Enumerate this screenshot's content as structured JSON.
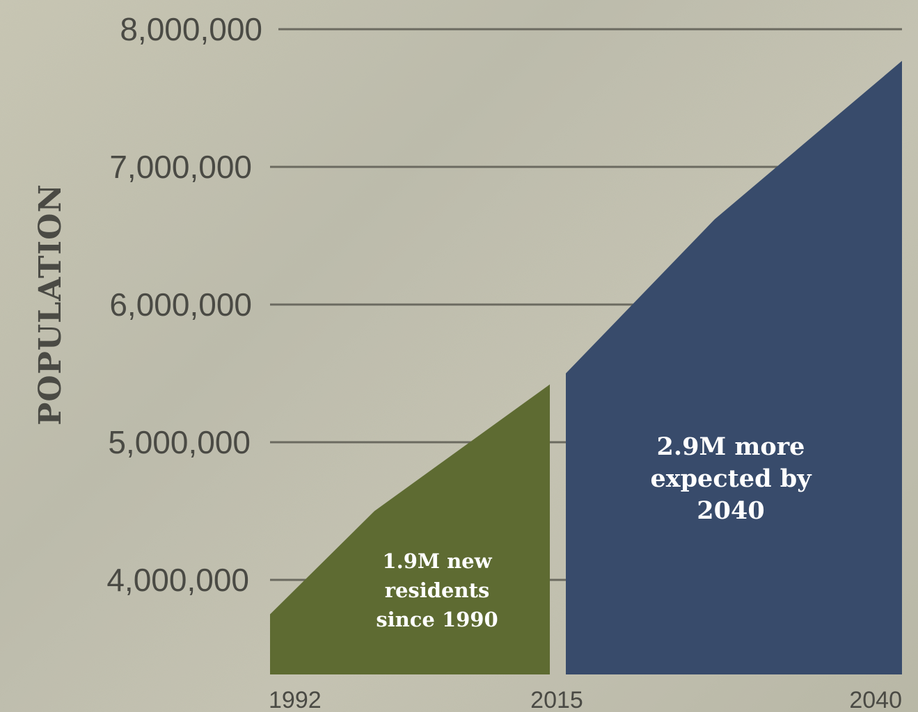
{
  "chart_data": {
    "type": "area",
    "ylabel": "POPULATION",
    "xlabel": "",
    "title": "",
    "ylim": [
      3360000,
      8000000
    ],
    "yticks": [
      8000000,
      7000000,
      6000000,
      5000000,
      4000000
    ],
    "ytick_labels": [
      "8,000,000",
      "7,000,000",
      "6,000,000",
      "5,000,000",
      "4,000,000"
    ],
    "xticks": [
      1992,
      2015,
      2040
    ],
    "xtick_labels": [
      "1992",
      "2015",
      "2040"
    ],
    "grid": true,
    "series": [
      {
        "x": [
          1992,
          1993,
          2001,
          2015
        ],
        "y": [
          3610000,
          3750000,
          4500000,
          5420000
        ],
        "color": "#5e6b32"
      },
      {
        "x": [
          2016,
          2030,
          2040
        ],
        "y": [
          5500000,
          6620000,
          7770000
        ],
        "color": "#384b6b"
      }
    ],
    "annotations": [
      {
        "lines": [
          "1.9M new",
          "residents",
          "since 1990"
        ],
        "x": 2004,
        "y": 4200000
      },
      {
        "lines": [
          "2.9M more",
          "expected by",
          "2040"
        ],
        "x": 2029,
        "y": 5250000
      }
    ]
  }
}
